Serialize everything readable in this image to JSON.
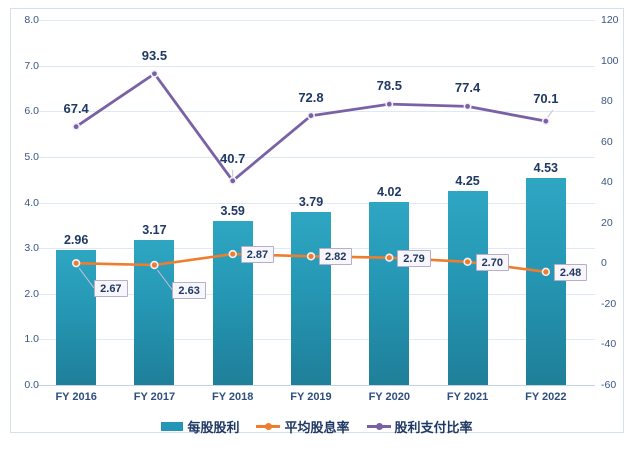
{
  "chart_data": {
    "type": "combo-bar-line",
    "categories": [
      "FY 2016",
      "FY 2017",
      "FY 2018",
      "FY 2019",
      "FY 2020",
      "FY 2021",
      "FY 2022"
    ],
    "series": [
      {
        "name": "每股股利",
        "type": "bar",
        "axis": "left",
        "values": [
          2.96,
          3.17,
          3.59,
          3.79,
          4.02,
          4.25,
          4.53
        ],
        "labels": [
          "2.96",
          "3.17",
          "3.59",
          "3.79",
          "4.02",
          "4.25",
          "4.53"
        ]
      },
      {
        "name": "平均股息率",
        "type": "line",
        "axis": "left",
        "values": [
          2.67,
          2.63,
          2.87,
          2.82,
          2.79,
          2.7,
          2.48
        ],
        "labels": [
          "2.67",
          "2.63",
          "2.87",
          "2.82",
          "2.79",
          "2.70",
          "2.48"
        ],
        "label_style": "callout-box"
      },
      {
        "name": "股利支付比率",
        "type": "line",
        "axis": "right",
        "values": [
          67.4,
          93.5,
          40.7,
          72.8,
          78.5,
          77.4,
          70.1
        ],
        "labels": [
          "67.4",
          "93.5",
          "40.7",
          "72.8",
          "78.5",
          "77.4",
          "70.1"
        ]
      }
    ],
    "left_axis": {
      "min": 0,
      "max": 8,
      "step": 1,
      "tick_labels": [
        "8.0",
        "7.0",
        "6.0",
        "5.0",
        "4.0",
        "3.0",
        "2.0",
        "1.0",
        "0.0"
      ]
    },
    "right_axis": {
      "min": -60,
      "max": 120,
      "step": 20,
      "tick_labels": [
        "120",
        "100",
        "80",
        "60",
        "40",
        "20",
        "0",
        "-20",
        "-40",
        "-60"
      ]
    },
    "grid": "horizontal",
    "legend_position": "bottom",
    "title": "",
    "colors": {
      "bar_top": "#2EA6C2",
      "bar_bottom": "#1F7F99",
      "bar_legend": "#2395B6",
      "orange_line": "#EE7D2E",
      "purple_line": "#7A61A6",
      "marker_ring": "#F2F0F7",
      "data_label": "#1F3864",
      "axis_tick": "#3A5684",
      "gridline": "#DFE9F5",
      "axis_line": "#C3D4E8",
      "frame_border": "#D5E0EE",
      "callout_bg": "#F7F6FB",
      "callout_border": "#B7AECB",
      "leader_line": "#C6BFD9"
    }
  }
}
